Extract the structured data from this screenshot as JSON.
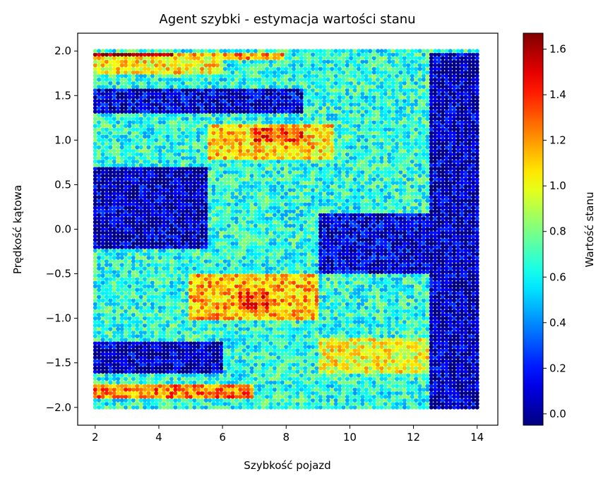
{
  "chart_data": {
    "type": "scatter",
    "title": "Agent szybki - estymacja wartości stanu",
    "xlabel": "Szybkość pojazd",
    "ylabel": "Prędkość kątowa",
    "colorbar_label": "Wartość stanu",
    "xlim": [
      1.45,
      14.65
    ],
    "ylim": [
      -2.2,
      2.2
    ],
    "x_ticks": [
      2,
      4,
      6,
      8,
      10,
      12,
      14
    ],
    "x_tick_labels": [
      "2",
      "4",
      "6",
      "8",
      "10",
      "12",
      "14"
    ],
    "y_ticks": [
      -2.0,
      -1.5,
      -1.0,
      -0.5,
      0.0,
      0.5,
      1.0,
      1.5,
      2.0
    ],
    "y_tick_labels": [
      "−2.0",
      "−1.5",
      "−1.0",
      "−0.5",
      "0.0",
      "0.5",
      "1.0",
      "1.5",
      "2.0"
    ],
    "colorbar_range": [
      -0.05,
      1.67
    ],
    "colorbar_ticks": [
      0.0,
      0.2,
      0.4,
      0.6,
      0.8,
      1.0,
      1.2,
      1.4,
      1.6
    ],
    "colorbar_tick_labels": [
      "0.0",
      "0.2",
      "0.4",
      "0.6",
      "0.8",
      "1.0",
      "1.2",
      "1.4",
      "1.6"
    ],
    "colormap": "jet",
    "x_domain": [
      2.0,
      14.1
    ],
    "y_domain": [
      -2.0,
      2.0
    ],
    "value_regions": [
      {
        "x": [
          2.0,
          4.5
        ],
        "y": [
          1.9,
          2.0
        ],
        "value": 1.6
      },
      {
        "x": [
          4.5,
          8.0
        ],
        "y": [
          1.9,
          2.0
        ],
        "value": 1.2
      },
      {
        "x": [
          2.0,
          6.0
        ],
        "y": [
          1.75,
          1.95
        ],
        "value": 1.05
      },
      {
        "x": [
          2.0,
          8.5
        ],
        "y": [
          1.3,
          1.6
        ],
        "value": 0.1
      },
      {
        "x": [
          5.5,
          9.5
        ],
        "y": [
          0.8,
          1.2
        ],
        "value": 1.1
      },
      {
        "x": [
          7.0,
          8.5
        ],
        "y": [
          1.0,
          1.15
        ],
        "value": 1.35
      },
      {
        "x": [
          2.0,
          5.5
        ],
        "y": [
          -0.2,
          0.7
        ],
        "value": 0.05
      },
      {
        "x": [
          9.0,
          13.5
        ],
        "y": [
          -0.5,
          0.2
        ],
        "value": 0.1
      },
      {
        "x": [
          5.0,
          9.0
        ],
        "y": [
          -1.0,
          -0.5
        ],
        "value": 1.15
      },
      {
        "x": [
          6.5,
          7.5
        ],
        "y": [
          -0.9,
          -0.7
        ],
        "value": 1.35
      },
      {
        "x": [
          2.0,
          6.0
        ],
        "y": [
          -1.6,
          -1.25
        ],
        "value": 0.05
      },
      {
        "x": [
          9.0,
          12.5
        ],
        "y": [
          -1.6,
          -1.2
        ],
        "value": 1.0
      },
      {
        "x": [
          2.0,
          7.0
        ],
        "y": [
          -1.9,
          -1.75
        ],
        "value": 1.25
      },
      {
        "x": [
          12.5,
          14.1
        ],
        "y": [
          -2.0,
          2.0
        ],
        "value": 0.05
      }
    ],
    "background_value": 0.65
  }
}
